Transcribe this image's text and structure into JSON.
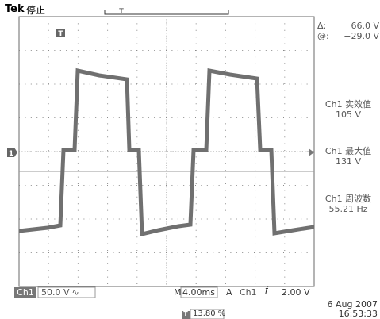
{
  "header": {
    "brand": "Tek",
    "state": "停止",
    "trigger_position_marker": "T"
  },
  "cursor_readout": {
    "delta_label": "Δ:",
    "delta_value": "66.0 V",
    "at_label": "@:",
    "at_value": "−29.0 V"
  },
  "measurements": [
    {
      "label": "Ch1 实效值",
      "value": "105 V"
    },
    {
      "label": "Ch1 最大值",
      "value": "131 V"
    },
    {
      "label": "Ch1 周波数",
      "value": "55.21 Hz"
    }
  ],
  "channel_marker": "1",
  "bottom_bar": {
    "channel": "Ch1",
    "volts_div": "50.0 V",
    "coupling_icon": "ac-coupling-icon",
    "horiz_prefix": "M",
    "time_div": "4.00ms",
    "trigger_mode": "A",
    "trigger_source": "Ch1",
    "trigger_slope_icon": "rising-edge-icon",
    "trigger_level": "2.00 V",
    "trigger_percent_marker": "T",
    "trigger_percent": "13.80 %"
  },
  "timestamp": {
    "date": "6 Aug 2007",
    "time": "16:53:33"
  },
  "colors": {
    "trace": "#707070",
    "grid": "#7a7a7a",
    "text": "#555555"
  }
}
